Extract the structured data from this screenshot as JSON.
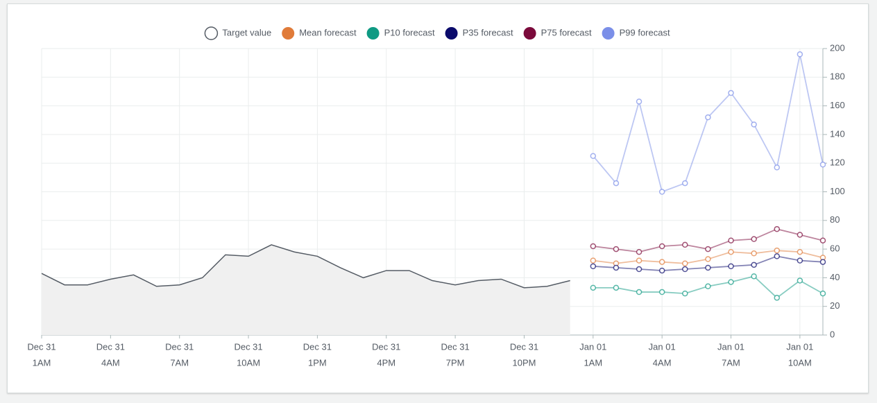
{
  "chart_data": {
    "type": "line",
    "xlim": [
      1,
      35
    ],
    "ylim": [
      0,
      200
    ],
    "yticks": [
      0,
      20,
      40,
      60,
      80,
      100,
      120,
      140,
      160,
      180,
      200
    ],
    "xticks": [
      {
        "value": 1,
        "label": [
          "Dec 31",
          "1AM"
        ]
      },
      {
        "value": 4,
        "label": [
          "Dec 31",
          "4AM"
        ]
      },
      {
        "value": 7,
        "label": [
          "Dec 31",
          "7AM"
        ]
      },
      {
        "value": 10,
        "label": [
          "Dec 31",
          "10AM"
        ]
      },
      {
        "value": 13,
        "label": [
          "Dec 31",
          "1PM"
        ]
      },
      {
        "value": 16,
        "label": [
          "Dec 31",
          "4PM"
        ]
      },
      {
        "value": 19,
        "label": [
          "Dec 31",
          "7PM"
        ]
      },
      {
        "value": 22,
        "label": [
          "Dec 31",
          "10PM"
        ]
      },
      {
        "value": 25,
        "label": [
          "Jan 01",
          "1AM"
        ]
      },
      {
        "value": 28,
        "label": [
          "Jan 01",
          "4AM"
        ]
      },
      {
        "value": 31,
        "label": [
          "Jan 01",
          "7AM"
        ]
      },
      {
        "value": 34,
        "label": [
          "Jan 01",
          "10AM"
        ]
      }
    ],
    "grid": true,
    "legend": "top",
    "series": [
      {
        "name": "Target value",
        "color": "#545b64",
        "area": true,
        "x": [
          1,
          2,
          3,
          4,
          5,
          6,
          7,
          8,
          9,
          10,
          11,
          12,
          13,
          14,
          15,
          16,
          17,
          18,
          19,
          20,
          21,
          22,
          23,
          24
        ],
        "values": [
          43,
          35,
          35,
          39,
          42,
          34,
          35,
          40,
          56,
          55,
          63,
          58,
          55,
          47,
          40,
          45,
          45,
          38,
          35,
          38,
          39,
          33,
          34,
          38
        ]
      },
      {
        "name": "Mean forecast",
        "color": "#e07b39",
        "markers": true,
        "x": [
          25,
          26,
          27,
          28,
          29,
          30,
          31,
          32,
          33,
          34,
          35
        ],
        "values": [
          52,
          50,
          52,
          51,
          50,
          53,
          58,
          57,
          59,
          58,
          54
        ]
      },
      {
        "name": "P10 forecast",
        "color": "#0f9a83",
        "markers": true,
        "x": [
          25,
          26,
          27,
          28,
          29,
          30,
          31,
          32,
          33,
          34,
          35
        ],
        "values": [
          33,
          33,
          30,
          30,
          29,
          34,
          37,
          41,
          26,
          38,
          29
        ]
      },
      {
        "name": "P35 forecast",
        "color": "#0a0a6b",
        "markers": true,
        "x": [
          25,
          26,
          27,
          28,
          29,
          30,
          31,
          32,
          33,
          34,
          35
        ],
        "values": [
          48,
          47,
          46,
          45,
          46,
          47,
          48,
          49,
          55,
          52,
          51
        ]
      },
      {
        "name": "P75 forecast",
        "color": "#7b0a3b",
        "markers": true,
        "x": [
          25,
          26,
          27,
          28,
          29,
          30,
          31,
          32,
          33,
          34,
          35
        ],
        "values": [
          62,
          60,
          58,
          62,
          63,
          60,
          66,
          67,
          74,
          70,
          66
        ]
      },
      {
        "name": "P99 forecast",
        "color": "#7b8fe8",
        "markers": true,
        "x": [
          25,
          26,
          27,
          28,
          29,
          30,
          31,
          32,
          33,
          34,
          35
        ],
        "values": [
          125,
          106,
          163,
          100,
          106,
          152,
          169,
          147,
          117,
          196,
          119
        ]
      }
    ]
  }
}
